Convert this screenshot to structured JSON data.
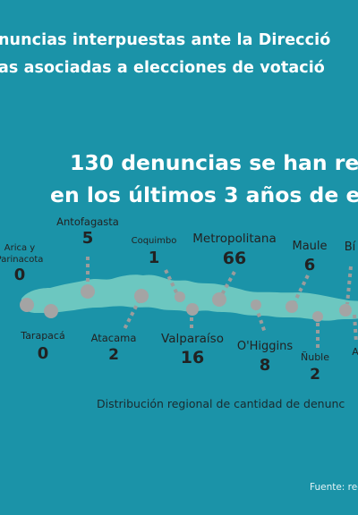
{
  "header": {
    "line1": "nuncias interpuestas ante la Direcció",
    "line2": "as asociadas a elecciones de votació"
  },
  "headline": {
    "line1": "130 denuncias se han reali",
    "line2": "en los últimos 3 años de elec"
  },
  "regions": [
    {
      "id": "arica",
      "name_lines": [
        "Arica y",
        "Parinacota"
      ],
      "count": "0"
    },
    {
      "id": "tarapaca",
      "name": "Tarapacá",
      "count": "0"
    },
    {
      "id": "antofagasta",
      "name": "Antofagasta",
      "count": "5"
    },
    {
      "id": "atacama",
      "name": "Atacama",
      "count": "2"
    },
    {
      "id": "coquimbo",
      "name": "Coquimbo",
      "count": "1"
    },
    {
      "id": "valparaiso",
      "name": "Valparaíso",
      "count": "16"
    },
    {
      "id": "metropolitana",
      "name": "Metropolitana",
      "count": "66"
    },
    {
      "id": "ohiggins",
      "name": "O'Higgins",
      "count": "8"
    },
    {
      "id": "maule",
      "name": "Maule",
      "count": "6"
    },
    {
      "id": "nuble",
      "name": "Ñuble",
      "count": "2"
    },
    {
      "id": "biobio",
      "name": "Bí",
      "count": ""
    },
    {
      "id": "araucania",
      "name": "A",
      "count": ""
    }
  ],
  "caption": "Distribución regional de cantidad de denunc",
  "source": "Fuente: reg",
  "colors": {
    "background": "#1b93a8",
    "map_fill": "#6cc7c0",
    "marker": "#a4a4a4",
    "leader": "#9c9c9c"
  }
}
